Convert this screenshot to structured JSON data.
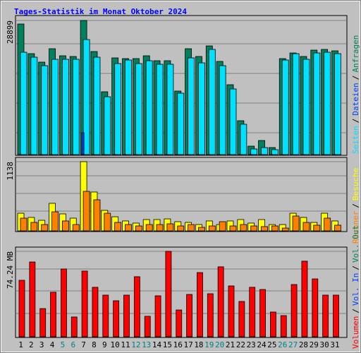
{
  "title": "Tages-Statistik im Monat Oktober 2024",
  "legend_separator": "/",
  "chart_data": [
    {
      "type": "bar",
      "ylim": [
        0,
        28899
      ],
      "yticks": [
        28899
      ],
      "series": [
        {
          "name": "Anfragen",
          "color": "#00805c",
          "values": [
            28139,
            21750,
            19925,
            22815,
            21294,
            21142,
            28899,
            22207,
            13537,
            20838,
            20686,
            20686,
            21294,
            20230,
            20230,
            13689,
            22815,
            21142,
            23423,
            20077,
            15058,
            7301,
            1825,
            3042,
            1521,
            20686,
            21902,
            21142,
            22511,
            22663,
            22359
          ]
        },
        {
          "name": "Seiten",
          "color": "#00e0ff",
          "values": [
            22054,
            20990,
            19165,
            20534,
            20534,
            20534,
            24792,
            20990,
            12472,
            19621,
            20381,
            19621,
            20229,
            19469,
            19469,
            13233,
            20838,
            19773,
            22663,
            19165,
            14145,
            6540,
            1217,
            1521,
            1065,
            20381,
            21750,
            20534,
            21902,
            22054,
            21750
          ]
        },
        {
          "name": "Dateien",
          "color": "#0040ff",
          "values": [
            0,
            0,
            0,
            0,
            0,
            0,
            4715,
            0,
            0,
            0,
            0,
            0,
            0,
            0,
            0,
            0,
            0,
            0,
            0,
            0,
            0,
            0,
            0,
            0,
            0,
            0,
            0,
            0,
            0,
            0,
            0
          ]
        }
      ]
    },
    {
      "type": "bar",
      "ylim": [
        0,
        1138
      ],
      "yticks": [
        1138
      ],
      "series": [
        {
          "name": "Besuche",
          "color": "#ffff00",
          "values": [
            290,
            221,
            174,
            453,
            279,
            209,
            1138,
            639,
            337,
            232,
            163,
            128,
            186,
            186,
            197,
            151,
            139,
            104,
            163,
            104,
            163,
            186,
            128,
            186,
            104,
            104,
            290,
            221,
            139,
            290,
            163
          ]
        },
        {
          "name": "Rechner",
          "color": "#ff8000",
          "values": [
            209,
            139,
            104,
            313,
            163,
            104,
            650,
            511,
            290,
            139,
            104,
            81,
            104,
            104,
            116,
            81,
            104,
            58,
            81,
            151,
            81,
            104,
            81,
            70,
            81,
            46,
            244,
            139,
            93,
            209,
            93
          ]
        }
      ]
    },
    {
      "type": "bar",
      "ylim": [
        0,
        74.24
      ],
      "yticks": [
        {
          "value": 74.24,
          "label": "74.24 MB"
        }
      ],
      "categories": [
        "1",
        "2",
        "3",
        "4",
        "5",
        "6",
        "7",
        "8",
        "9",
        "10",
        "11",
        "12",
        "13",
        "14",
        "15",
        "16",
        "17",
        "18",
        "19",
        "20",
        "21",
        "22",
        "23",
        "24",
        "25",
        "26",
        "27",
        "28",
        "29",
        "30",
        "31"
      ],
      "highlight_categories": [
        "5",
        "6",
        "12",
        "13",
        "19",
        "20",
        "26",
        "27"
      ],
      "highlight_color": "#008080",
      "series": [
        {
          "name": "Volumen",
          "color": "#ff0000",
          "values": [
            49.1,
            65.0,
            24.5,
            38.7,
            58.9,
            17.2,
            57.1,
            43.0,
            36.2,
            31.3,
            36.2,
            52.2,
            17.8,
            35.6,
            74.24,
            23.3,
            36.8,
            55.8,
            37.4,
            60.8,
            44.2,
            30.7,
            43.0,
            41.1,
            21.5,
            18.4,
            45.4,
            65.7,
            50.3,
            36.2,
            36.2
          ]
        },
        {
          "name": "Vol. In",
          "color": "#0040ff",
          "values": [
            0,
            0,
            0,
            0,
            0,
            0,
            0,
            0,
            0,
            0,
            0,
            0,
            0,
            0,
            0,
            0,
            0,
            0,
            0,
            0,
            0,
            0,
            0,
            0,
            0,
            0,
            0,
            0,
            0,
            0,
            0
          ]
        },
        {
          "name": "Vol. Out",
          "color": "#00805c",
          "values": [
            0,
            0,
            0,
            0,
            0,
            0,
            0,
            0,
            0,
            0,
            0,
            0,
            0,
            0,
            0,
            0,
            0,
            0,
            0,
            0,
            0,
            0,
            0,
            0,
            0,
            0,
            0,
            0,
            0,
            0,
            0
          ]
        }
      ]
    }
  ]
}
